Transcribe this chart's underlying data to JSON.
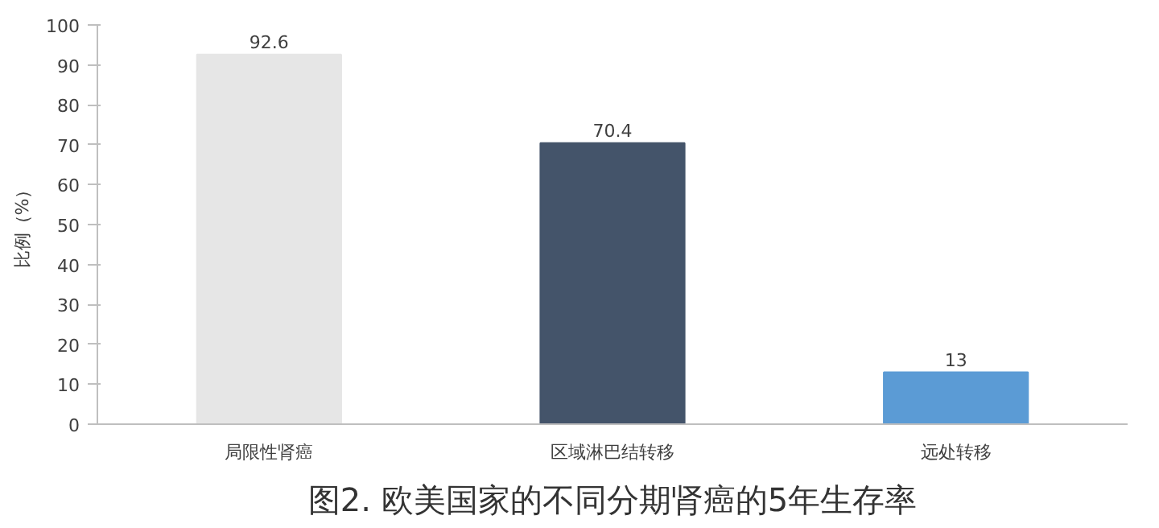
{
  "chart_data": {
    "type": "bar",
    "title": "图2. 欧美国家的不同分期肾癌的5年生存率",
    "ylabel": "比例（%）",
    "categories": [
      "局限性肾癌",
      "区域淋巴结转移",
      "远处转移"
    ],
    "values": [
      92.6,
      70.4,
      13
    ],
    "colors": [
      "#e6e6e6",
      "#44546a",
      "#5b9bd5"
    ],
    "ylim": [
      0,
      100
    ],
    "yticks": [
      0,
      10,
      20,
      30,
      40,
      50,
      60,
      70,
      80,
      90,
      100
    ],
    "grid": false,
    "data_labels": true
  }
}
